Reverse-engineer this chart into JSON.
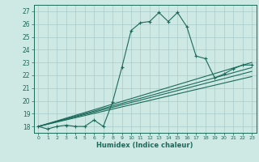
{
  "xlabel": "Humidex (Indice chaleur)",
  "bg_color": "#cee8e4",
  "grid_color": "#a8ccc8",
  "line_color": "#1a6b5a",
  "xlim": [
    -0.5,
    23.5
  ],
  "ylim": [
    17.5,
    27.5
  ],
  "xticks": [
    0,
    1,
    2,
    3,
    4,
    5,
    6,
    7,
    8,
    9,
    10,
    11,
    12,
    13,
    14,
    15,
    16,
    17,
    18,
    19,
    20,
    21,
    22,
    23
  ],
  "yticks": [
    18,
    19,
    20,
    21,
    22,
    23,
    24,
    25,
    26,
    27
  ],
  "series": [
    [
      0,
      18
    ],
    [
      1,
      17.8
    ],
    [
      2,
      18
    ],
    [
      3,
      18.1
    ],
    [
      4,
      18
    ],
    [
      5,
      18
    ],
    [
      6,
      18.5
    ],
    [
      7,
      18
    ],
    [
      8,
      19.9
    ],
    [
      9,
      22.6
    ],
    [
      10,
      25.5
    ],
    [
      11,
      26.1
    ],
    [
      12,
      26.2
    ],
    [
      13,
      26.9
    ],
    [
      14,
      26.2
    ],
    [
      15,
      26.9
    ],
    [
      16,
      25.8
    ],
    [
      17,
      23.5
    ],
    [
      18,
      23.3
    ],
    [
      19,
      21.8
    ],
    [
      20,
      22.1
    ],
    [
      21,
      22.5
    ],
    [
      22,
      22.8
    ],
    [
      23,
      22.8
    ]
  ],
  "diag_lines": [
    [
      [
        0,
        18
      ],
      [
        23,
        23.0
      ]
    ],
    [
      [
        0,
        18
      ],
      [
        23,
        22.6
      ]
    ],
    [
      [
        0,
        18
      ],
      [
        23,
        22.3
      ]
    ],
    [
      [
        0,
        18
      ],
      [
        23,
        21.9
      ]
    ]
  ]
}
